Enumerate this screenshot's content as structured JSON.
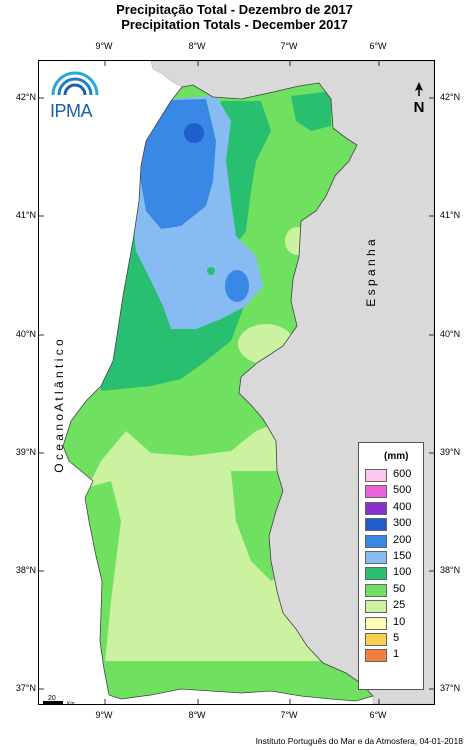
{
  "title_pt": "Precipitação Total  -  Dezembro de 2017",
  "title_en": "Precipitation Totals - December 2017",
  "ticks_lon": [
    "9°W",
    "8°W",
    "7°W",
    "6°W"
  ],
  "ticks_lat": [
    "42°N",
    "41°N",
    "40°N",
    "39°N",
    "38°N",
    "37°N"
  ],
  "ocean_label": "O c e a n o   A t l â n t i c o",
  "spain_label": "E s p a n h a",
  "logo_text": "IPMA",
  "scale_number": "20",
  "scale_unit": "Km",
  "north_letter": "N",
  "credit": "Instituto Português do Mar e da Atmosfera, 04-01-2018",
  "legend": {
    "unit": "(mm)",
    "items": [
      {
        "label": "600",
        "color": "#f8c8f0"
      },
      {
        "label": "500",
        "color": "#ec60d8"
      },
      {
        "label": "400",
        "color": "#8a2ed0"
      },
      {
        "label": "300",
        "color": "#1e5fcc"
      },
      {
        "label": "200",
        "color": "#3a88e6"
      },
      {
        "label": "150",
        "color": "#86bcf2"
      },
      {
        "label": "100",
        "color": "#28c070"
      },
      {
        "label": "50",
        "color": "#6fe060"
      },
      {
        "label": "25",
        "color": "#caf2a0"
      },
      {
        "label": "10",
        "color": "#fdfdb8"
      },
      {
        "label": "5",
        "color": "#f8d050"
      },
      {
        "label": "1",
        "color": "#f08040"
      }
    ]
  },
  "colors": {
    "land_outside": "#d9d9d9",
    "sea": "#ffffff",
    "accent": "#1a5fa8"
  }
}
